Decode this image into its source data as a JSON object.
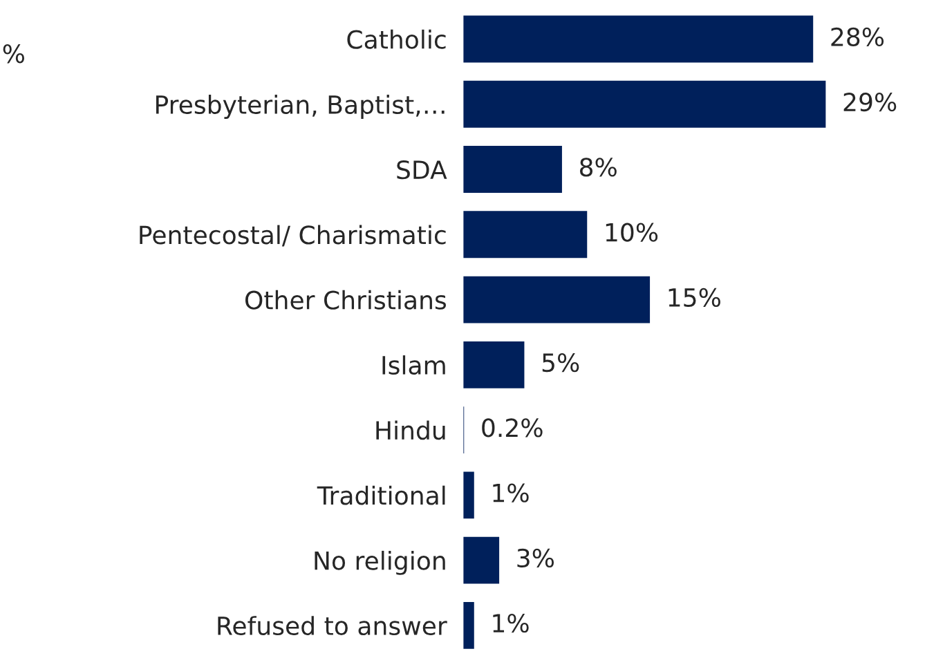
{
  "chart_data": {
    "type": "bar",
    "orientation": "horizontal",
    "categories": [
      "Catholic",
      "Presbyterian, Baptist,…",
      "SDA",
      "Pentecostal/ Charismatic",
      "Other Christians",
      "Islam",
      "Hindu",
      "Traditional",
      "No religion",
      "Refused to answer"
    ],
    "values": [
      28,
      29,
      8,
      10,
      15,
      5,
      0.2,
      1,
      3,
      1
    ],
    "value_labels": [
      "28%",
      "29%",
      "8%",
      "10%",
      "15%",
      "5%",
      "0.2%",
      "1%",
      "3%",
      "1%"
    ],
    "color": "#00205b",
    "tick_labels": "y",
    "grid": false,
    "legend": false,
    "annotations": [
      "%"
    ]
  }
}
